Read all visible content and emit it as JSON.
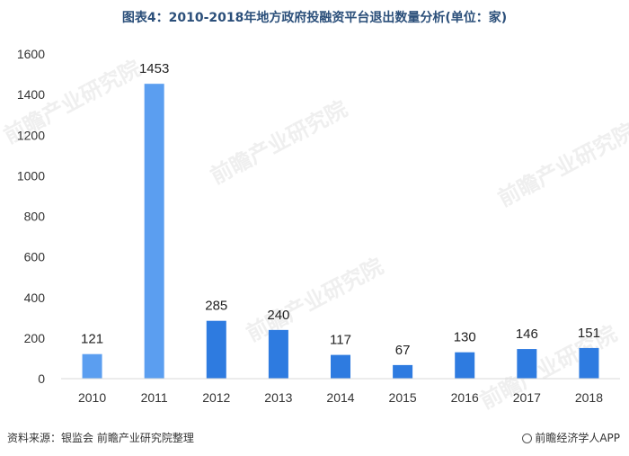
{
  "title": "图表4：2010-2018年地方政府投融资平台退出数量分析(单位：家)",
  "source": "资料来源：银监会 前瞻产业研究院整理",
  "brand": "前瞻经济学人APP",
  "watermark": "前瞻产业研究院",
  "colors": {
    "bar_light": "#5b9ef0",
    "bar_dark": "#2e7be0",
    "axis": "#d9d9d9"
  },
  "chart_data": {
    "type": "bar",
    "title": "图表4：2010-2018年地方政府投融资平台退出数量分析(单位：家)",
    "categories": [
      "2010",
      "2011",
      "2012",
      "2013",
      "2014",
      "2015",
      "2016",
      "2017",
      "2018"
    ],
    "values": [
      121,
      1453,
      285,
      240,
      117,
      67,
      130,
      146,
      151
    ],
    "ylim": [
      0,
      1600
    ],
    "yticks": [
      0,
      200,
      400,
      600,
      800,
      1000,
      1200,
      1400,
      1600
    ],
    "xlabel": "",
    "ylabel": "",
    "grid": false,
    "data_labels": true
  }
}
